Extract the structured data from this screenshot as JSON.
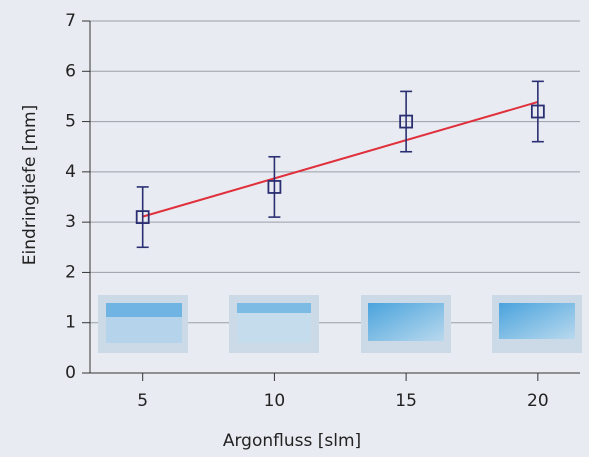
{
  "chart_data": {
    "type": "scatter",
    "x_label": "Argonfluss [slm]",
    "y_label": "Eindringtiefe [mm]",
    "x": [
      5,
      10,
      15,
      20
    ],
    "series": [
      {
        "color": "#2b2f72",
        "values": [
          3.1,
          3.7,
          5.0,
          5.2
        ],
        "errors": [
          0.6,
          0.6,
          0.6,
          0.6
        ]
      }
    ],
    "trend": {
      "x": [
        5,
        20
      ],
      "values": [
        3.11,
        5.39
      ],
      "color": "#e0303c"
    },
    "xlim": [
      3,
      21.6
    ],
    "ylim": [
      0,
      7
    ],
    "xticks": [
      5,
      10,
      15,
      20
    ],
    "yticks": [
      0,
      1,
      2,
      3,
      4,
      5,
      6,
      7
    ],
    "grid": true
  }
}
